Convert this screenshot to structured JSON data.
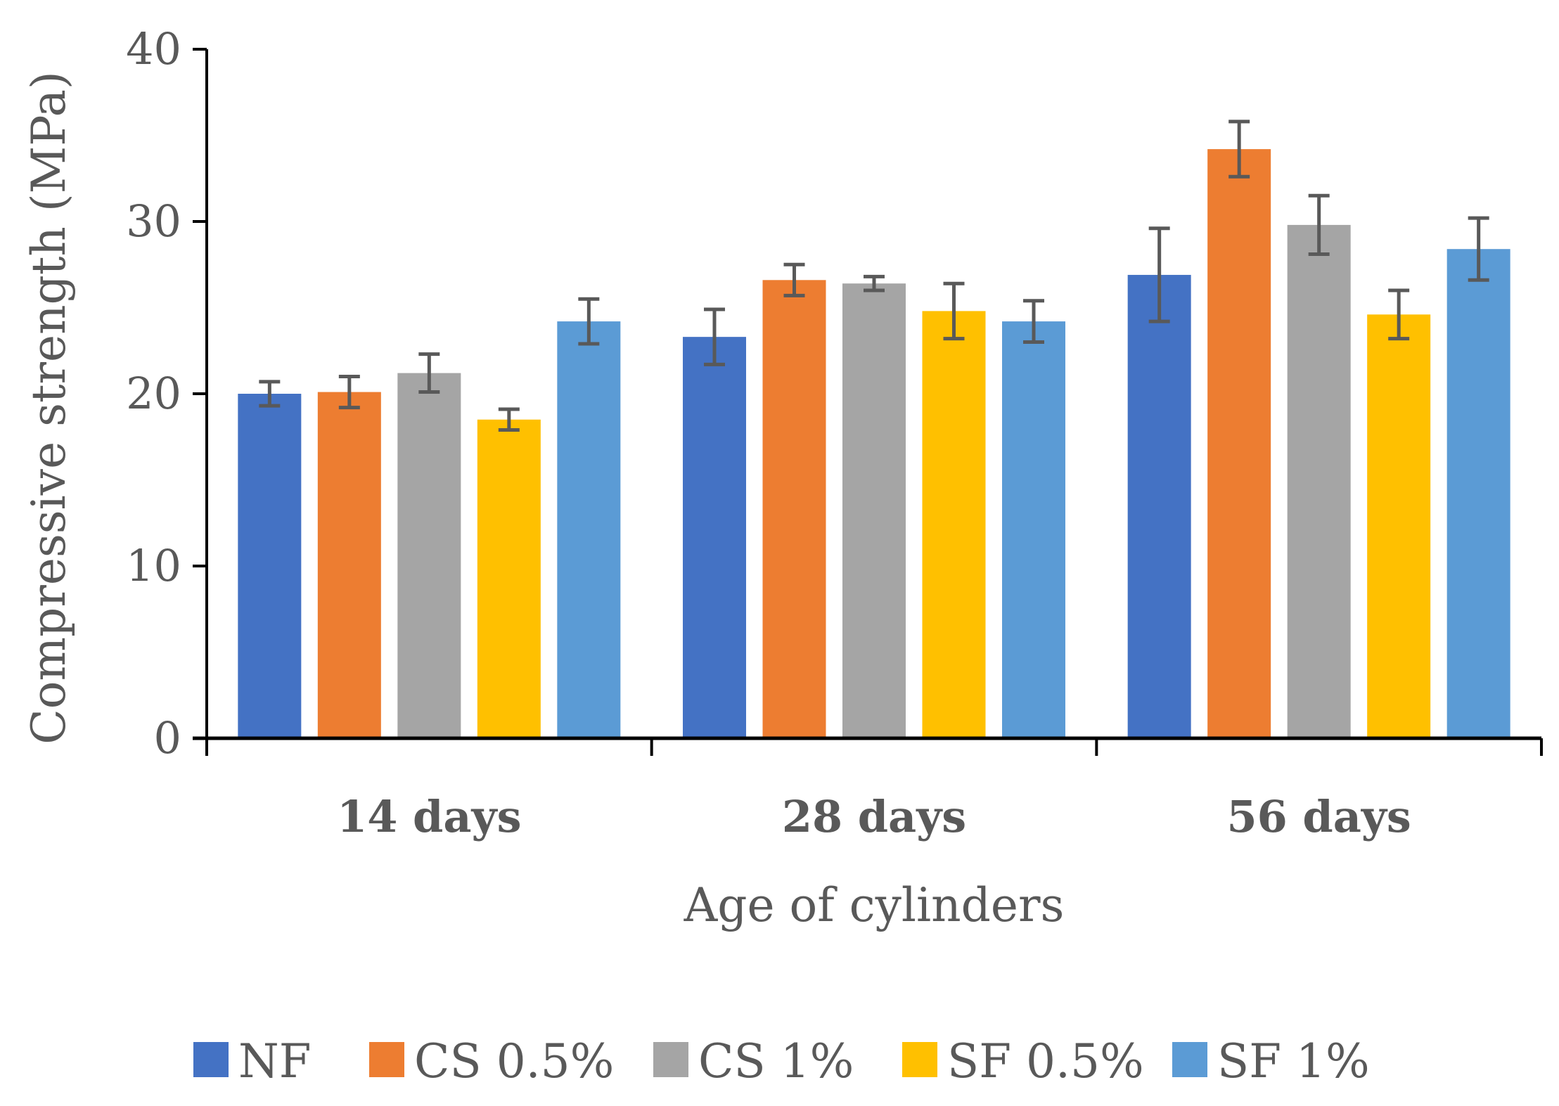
{
  "chart_data": {
    "type": "bar",
    "title": "",
    "xlabel": "Age of cylinders",
    "ylabel": "Compressive strength (MPa)",
    "ylim": [
      0,
      40
    ],
    "yticks": [
      0,
      10,
      20,
      30,
      40
    ],
    "categories": [
      "14 days",
      "28 days",
      "56 days"
    ],
    "legend_position": "bottom",
    "series": [
      {
        "name": "NF",
        "color": "#4472C4",
        "values": [
          20.0,
          23.3,
          26.9
        ],
        "errors": [
          0.7,
          1.6,
          2.7
        ]
      },
      {
        "name": "CS 0.5%",
        "color": "#ED7D31",
        "values": [
          20.1,
          26.6,
          34.2
        ],
        "errors": [
          0.9,
          0.9,
          1.6
        ]
      },
      {
        "name": "CS 1%",
        "color": "#A5A5A5",
        "values": [
          21.2,
          26.4,
          29.8
        ],
        "errors": [
          1.1,
          0.4,
          1.7
        ]
      },
      {
        "name": "SF 0.5%",
        "color": "#FFC000",
        "values": [
          18.5,
          24.8,
          24.6
        ],
        "errors": [
          0.6,
          1.6,
          1.4
        ]
      },
      {
        "name": "SF 1%",
        "color": "#5B9BD5",
        "values": [
          24.2,
          24.2,
          28.4
        ],
        "errors": [
          1.3,
          1.2,
          1.8
        ]
      }
    ],
    "error_bar_color": "#595959"
  }
}
